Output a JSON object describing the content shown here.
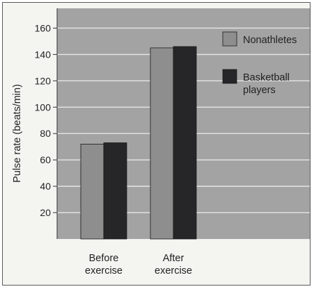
{
  "chart_data": {
    "type": "bar",
    "ylabel": "Pulse rate (beats/min)",
    "xlabel": "",
    "ylim": [
      0,
      175
    ],
    "yticks": [
      20,
      40,
      60,
      80,
      100,
      120,
      140,
      160
    ],
    "categories": [
      {
        "lines": [
          "Before",
          "exercise"
        ]
      },
      {
        "lines": [
          "After",
          "exercise"
        ]
      }
    ],
    "series": [
      {
        "name_lines": [
          "Nonathletes"
        ],
        "values": [
          72,
          145
        ],
        "color": "#8e8e8e"
      },
      {
        "name_lines": [
          "Basketball",
          "players"
        ],
        "values": [
          73,
          146
        ],
        "color": "#262629"
      }
    ],
    "grid": true,
    "legend_position": "top-right",
    "plot_background": "#a3a3a3",
    "grid_color": "#e6e6e6"
  }
}
